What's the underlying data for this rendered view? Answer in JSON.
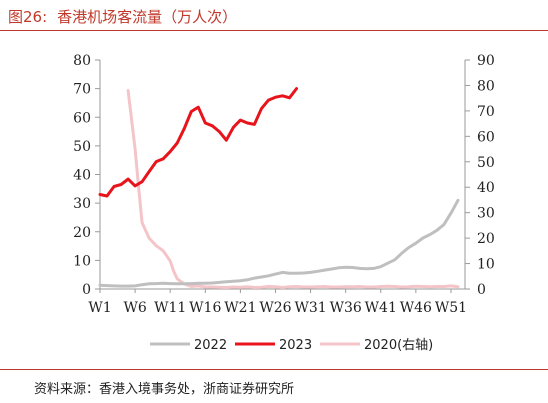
{
  "header": {
    "figure_number": "图26:",
    "figure_title": "香港机场客流量（万人次）"
  },
  "footer": {
    "source": "资料来源：香港入境事务处，浙商证券研究所"
  },
  "colors": {
    "series_2022": "#bfbfbf",
    "series_2023": "#e8141b",
    "series_2020": "#f4c5c8",
    "rule": "#c0392b"
  },
  "chart_data": {
    "type": "line",
    "title": "香港机场客流量（万人次）",
    "x_tick_labels": [
      "W1",
      "W6",
      "W11",
      "W16",
      "W21",
      "W26",
      "W31",
      "W36",
      "W41",
      "W46",
      "W51"
    ],
    "x_range": [
      1,
      53
    ],
    "y_left_range": [
      0,
      80
    ],
    "y_left_ticks": [
      0,
      10,
      20,
      30,
      40,
      50,
      60,
      70,
      80
    ],
    "y_right_range": [
      0,
      90
    ],
    "y_right_ticks": [
      0,
      10,
      20,
      30,
      40,
      50,
      60,
      70,
      80,
      90
    ],
    "grid": false,
    "legend_position": "bottom",
    "series": [
      {
        "name": "2022",
        "axis": "left",
        "color": "#bfbfbf",
        "x": [
          1,
          2,
          3,
          4,
          5,
          6,
          7,
          8,
          9,
          10,
          11,
          12,
          13,
          14,
          15,
          16,
          17,
          18,
          19,
          20,
          21,
          22,
          23,
          24,
          25,
          26,
          27,
          28,
          29,
          30,
          31,
          32,
          33,
          34,
          35,
          36,
          37,
          38,
          39,
          40,
          41,
          42,
          43,
          44,
          45,
          46,
          47,
          48,
          49,
          50,
          51,
          52
        ],
        "y": [
          1.3,
          1.2,
          1.1,
          1.0,
          1.0,
          1.1,
          1.5,
          1.8,
          1.9,
          2.0,
          1.9,
          1.8,
          1.8,
          1.9,
          2.0,
          2.0,
          2.1,
          2.3,
          2.5,
          2.7,
          2.9,
          3.2,
          3.8,
          4.2,
          4.6,
          5.2,
          5.8,
          5.5,
          5.5,
          5.6,
          5.8,
          6.2,
          6.6,
          7.0,
          7.4,
          7.6,
          7.5,
          7.2,
          7.1,
          7.2,
          7.8,
          9.0,
          10.2,
          12.5,
          14.5,
          16.0,
          17.8,
          19.0,
          20.5,
          22.5,
          26.5,
          31.0
        ]
      },
      {
        "name": "2023",
        "axis": "left",
        "color": "#e8141b",
        "x": [
          1,
          2,
          3,
          4,
          5,
          6,
          7,
          8,
          9,
          10,
          11,
          12,
          13,
          14,
          15,
          16,
          17,
          18,
          19,
          20,
          21,
          22,
          23,
          24,
          25,
          26,
          27,
          28,
          29
        ],
        "y": [
          33,
          32.5,
          35.8,
          36.5,
          38.4,
          36,
          37.5,
          41,
          44.5,
          45.5,
          48,
          51,
          56,
          62,
          63.5,
          58,
          57,
          55,
          52,
          56.5,
          59,
          58,
          57.5,
          63,
          66,
          67,
          67.5,
          66.8,
          70
        ]
      },
      {
        "name": "2020(右轴)",
        "axis": "right",
        "color": "#f4c5c8",
        "x": [
          5,
          6,
          6.5,
          7,
          8,
          9,
          10,
          11,
          11.5,
          12,
          13,
          14,
          15,
          16,
          17,
          18,
          19,
          20,
          21,
          22,
          23,
          24,
          25,
          26,
          27,
          28,
          29,
          30,
          31,
          32,
          33,
          34,
          35,
          36,
          37,
          38,
          39,
          40,
          41,
          42,
          43,
          44,
          45,
          46,
          47,
          48,
          49,
          50,
          51,
          52
        ],
        "y": [
          78,
          55,
          40,
          26,
          20,
          17,
          15,
          11,
          7,
          4,
          2,
          1,
          1.2,
          0.8,
          0.8,
          0.7,
          0.6,
          0.8,
          0.7,
          0.9,
          0.6,
          0.7,
          1.0,
          0.9,
          0.6,
          0.9,
          1.0,
          0.8,
          0.8,
          0.9,
          1.0,
          0.8,
          0.8,
          0.9,
          0.9,
          1.0,
          0.8,
          0.8,
          1.0,
          1.1,
          1.0,
          0.8,
          0.9,
          1.1,
          1.0,
          0.9,
          1.0,
          1.0,
          1.2,
          0.9
        ]
      }
    ]
  }
}
